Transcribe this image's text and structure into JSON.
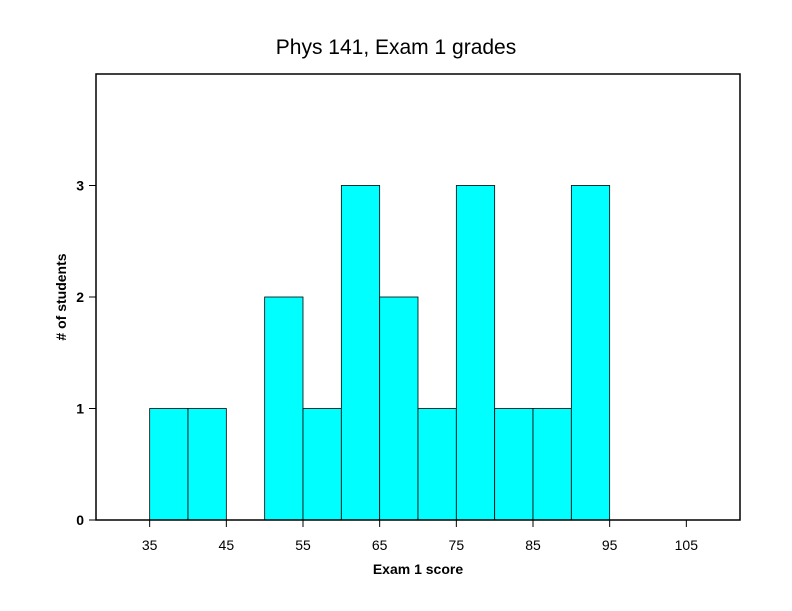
{
  "chart_data": {
    "type": "bar",
    "title": "Phys 141, Exam 1 grades",
    "xlabel": "Exam 1 score",
    "ylabel": "# of students",
    "bin_width": 5,
    "bins": [
      {
        "start": 35,
        "end": 40,
        "count": 1
      },
      {
        "start": 40,
        "end": 45,
        "count": 1
      },
      {
        "start": 45,
        "end": 50,
        "count": 0
      },
      {
        "start": 50,
        "end": 55,
        "count": 2
      },
      {
        "start": 55,
        "end": 60,
        "count": 1
      },
      {
        "start": 60,
        "end": 65,
        "count": 3
      },
      {
        "start": 65,
        "end": 70,
        "count": 2
      },
      {
        "start": 70,
        "end": 75,
        "count": 1
      },
      {
        "start": 75,
        "end": 80,
        "count": 3
      },
      {
        "start": 80,
        "end": 85,
        "count": 1
      },
      {
        "start": 85,
        "end": 90,
        "count": 1
      },
      {
        "start": 90,
        "end": 95,
        "count": 3
      }
    ],
    "xticks": [
      35,
      45,
      55,
      65,
      75,
      85,
      95,
      105
    ],
    "yticks": [
      0,
      1,
      2,
      3
    ],
    "xlim": [
      28,
      112
    ],
    "ylim": [
      0,
      4.0
    ],
    "bar_color": "#00ffff",
    "grid": false,
    "legend": false
  }
}
